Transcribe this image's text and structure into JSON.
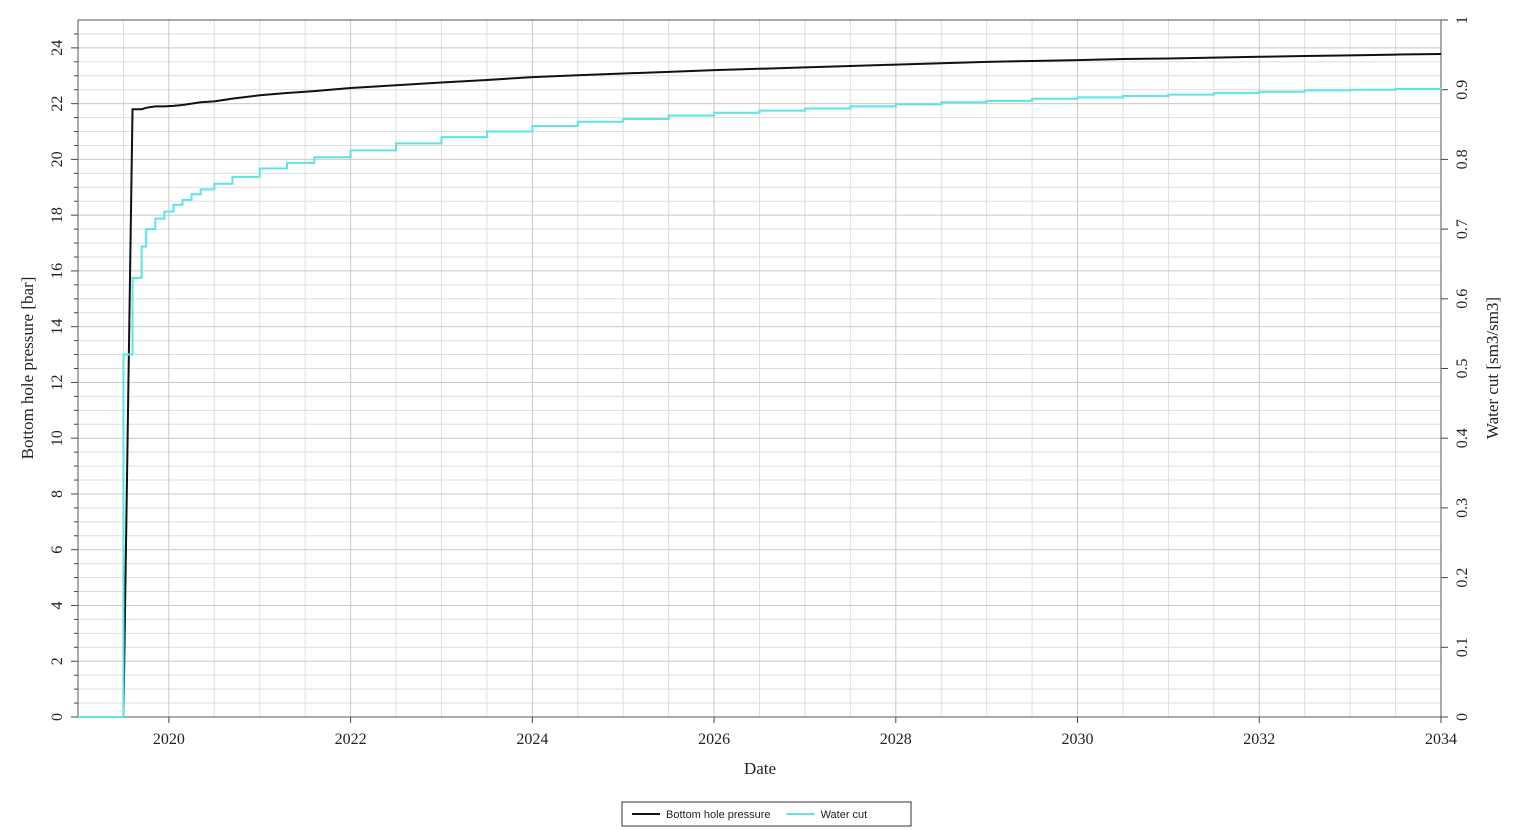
{
  "chart_data": {
    "type": "line",
    "xlabel": "Date",
    "ylabel": "Bottom hole pressure [bar]",
    "y2label": "Water cut [sm3/sm3]",
    "x": [
      2019,
      2019.5,
      2019.6,
      2019.7,
      2019.75,
      2019.85,
      2019.95,
      2020.05,
      2020.15,
      2020.25,
      2020.35,
      2020.5,
      2020.7,
      2021,
      2021.3,
      2021.6,
      2022,
      2022.5,
      2023,
      2023.5,
      2024,
      2024.5,
      2025,
      2025.5,
      2026,
      2026.5,
      2027,
      2027.5,
      2028,
      2028.5,
      2029,
      2029.5,
      2030,
      2030.5,
      2031,
      2031.5,
      2032,
      2032.5,
      2033,
      2033.5,
      2034
    ],
    "series": [
      {
        "name": "Bottom hole pressure",
        "color": "#111111",
        "step": false,
        "values": [
          0,
          0,
          21.8,
          21.8,
          21.85,
          21.9,
          21.9,
          21.92,
          21.95,
          22.0,
          22.05,
          22.08,
          22.18,
          22.3,
          22.38,
          22.45,
          22.56,
          22.66,
          22.76,
          22.85,
          22.95,
          23.02,
          23.08,
          23.14,
          23.2,
          23.25,
          23.3,
          23.35,
          23.4,
          23.45,
          23.5,
          23.53,
          23.56,
          23.6,
          23.62,
          23.65,
          23.68,
          23.71,
          23.73,
          23.76,
          23.78
        ]
      },
      {
        "name": "Water cut",
        "color": "#5fe3e3",
        "axis": "y2",
        "step": true,
        "values": [
          0,
          0.52,
          0.63,
          0.675,
          0.7,
          0.715,
          0.725,
          0.735,
          0.742,
          0.75,
          0.757,
          0.765,
          0.775,
          0.787,
          0.795,
          0.803,
          0.813,
          0.823,
          0.832,
          0.84,
          0.848,
          0.854,
          0.858,
          0.863,
          0.867,
          0.87,
          0.873,
          0.876,
          0.879,
          0.882,
          0.884,
          0.887,
          0.889,
          0.891,
          0.893,
          0.895,
          0.897,
          0.899,
          0.9,
          0.901,
          0.902
        ]
      }
    ],
    "xlim": [
      2019,
      2034
    ],
    "xticks": [
      2020,
      2022,
      2024,
      2026,
      2028,
      2030,
      2032,
      2034
    ],
    "xminorticks": [
      2019.5,
      2020.5,
      2021,
      2021.5,
      2022.5,
      2023,
      2023.5,
      2024.5,
      2025,
      2025.5,
      2026.5,
      2027,
      2027.5,
      2028.5,
      2029,
      2029.5,
      2030.5,
      2031,
      2031.5,
      2032.5,
      2033,
      2033.5
    ],
    "ylim": [
      0,
      25
    ],
    "yticks": [
      0,
      2,
      4,
      6,
      8,
      10,
      12,
      14,
      16,
      18,
      20,
      22,
      24
    ],
    "yminorticks": [
      0.5,
      1,
      1.5,
      2.5,
      3,
      3.5,
      4.5,
      5,
      5.5,
      6.5,
      7,
      7.5,
      8.5,
      9,
      9.5,
      10.5,
      11,
      11.5,
      12.5,
      13,
      13.5,
      14.5,
      15,
      15.5,
      16.5,
      17,
      17.5,
      18.5,
      19,
      19.5,
      20.5,
      21,
      21.5,
      22.5,
      23,
      23.5,
      24.5
    ],
    "y2lim": [
      0,
      1
    ],
    "y2ticks": [
      0,
      0.1,
      0.2,
      0.3,
      0.4,
      0.5,
      0.6,
      0.7,
      0.8,
      0.9,
      1
    ],
    "grid": true,
    "legend": "bottom"
  }
}
